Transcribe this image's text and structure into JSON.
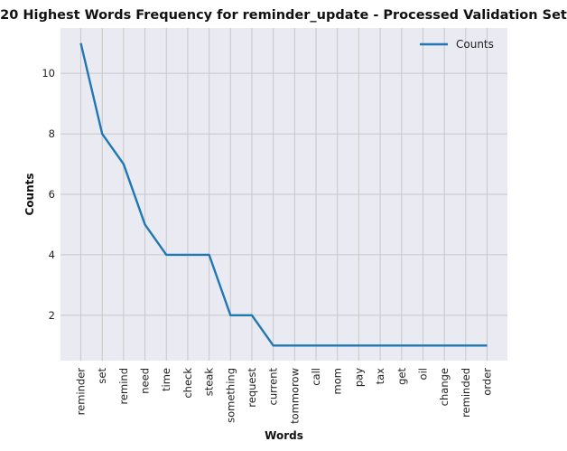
{
  "chart_data": {
    "type": "line",
    "title": "20 Highest Words Frequency for reminder_update - Processed Validation Set",
    "xlabel": "Words",
    "ylabel": "Counts",
    "categories": [
      "reminder",
      "set",
      "remind",
      "need",
      "time",
      "check",
      "steak",
      "something",
      "request",
      "current",
      "tommorow",
      "call",
      "mom",
      "pay",
      "tax",
      "get",
      "oil",
      "change",
      "reminded",
      "order"
    ],
    "series": [
      {
        "name": "Counts",
        "values": [
          11,
          8,
          7,
          5,
          4,
          4,
          4,
          2,
          2,
          1,
          1,
          1,
          1,
          1,
          1,
          1,
          1,
          1,
          1,
          1
        ],
        "color": "#1f77b4"
      }
    ],
    "y_ticks": [
      2,
      4,
      6,
      8,
      10
    ],
    "ylim": [
      0.5,
      11.5
    ],
    "grid": true,
    "legend_position": "top-right",
    "background_color": "#eaeaf2",
    "grid_color": "#c8c8c8"
  }
}
